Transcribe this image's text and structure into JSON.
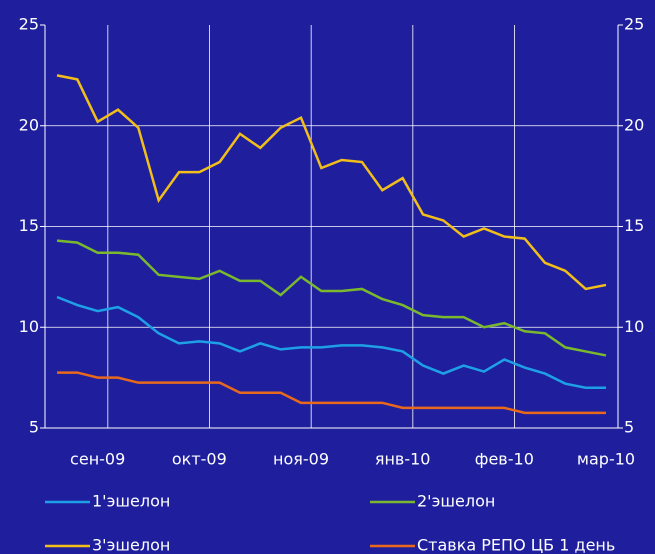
{
  "chart_data": {
    "type": "line",
    "categories": [
      null,
      null,
      "сен-09",
      null,
      null,
      null,
      null,
      "окт-09",
      null,
      null,
      null,
      null,
      "ноя-09",
      null,
      null,
      null,
      null,
      "янв-10",
      null,
      null,
      null,
      null,
      "фев-10",
      null,
      null,
      null,
      null,
      "мар-10"
    ],
    "ylim": [
      5,
      25
    ],
    "yticks": [
      5,
      10,
      15,
      20,
      25
    ],
    "y2lim": [
      5,
      25
    ],
    "y2ticks": [
      5,
      10,
      15,
      20,
      25
    ],
    "grid": true,
    "series": [
      {
        "name": "1'эшелон",
        "color": "#1ea0e6",
        "values": [
          11.5,
          11.1,
          10.8,
          11.0,
          10.5,
          9.7,
          9.2,
          9.3,
          9.2,
          8.8,
          9.2,
          8.9,
          9.0,
          9.0,
          9.1,
          9.1,
          9.0,
          8.8,
          8.1,
          7.7,
          8.1,
          7.8,
          8.4,
          8.0,
          7.7,
          7.2,
          7.0,
          7.0
        ]
      },
      {
        "name": "2'эшелон",
        "color": "#7ab82e",
        "values": [
          14.3,
          14.2,
          13.7,
          13.7,
          13.6,
          12.6,
          12.5,
          12.4,
          12.8,
          12.3,
          12.3,
          11.6,
          12.5,
          11.8,
          11.8,
          11.9,
          11.4,
          11.1,
          10.6,
          10.5,
          10.5,
          10.0,
          10.2,
          9.8,
          9.7,
          9.0,
          8.8,
          8.6
        ]
      },
      {
        "name": "3'эшелон",
        "color": "#f2be1a",
        "values": [
          22.5,
          22.3,
          20.2,
          20.8,
          19.9,
          16.3,
          17.7,
          17.7,
          18.2,
          19.6,
          18.9,
          19.9,
          20.4,
          17.9,
          18.3,
          18.2,
          16.8,
          17.4,
          15.6,
          15.3,
          14.5,
          14.9,
          14.5,
          14.4,
          13.2,
          12.8,
          11.9,
          12.1
        ]
      },
      {
        "name": "Ставка РЕПО ЦБ 1 день",
        "color": "#e8691c",
        "values": [
          7.75,
          7.75,
          7.5,
          7.5,
          7.25,
          7.25,
          7.25,
          7.25,
          7.25,
          6.75,
          6.75,
          6.75,
          6.25,
          6.25,
          6.25,
          6.25,
          6.25,
          6.0,
          6.0,
          6.0,
          6.0,
          6.0,
          6.0,
          5.75,
          5.75,
          5.75,
          5.75,
          5.75
        ]
      }
    ]
  }
}
